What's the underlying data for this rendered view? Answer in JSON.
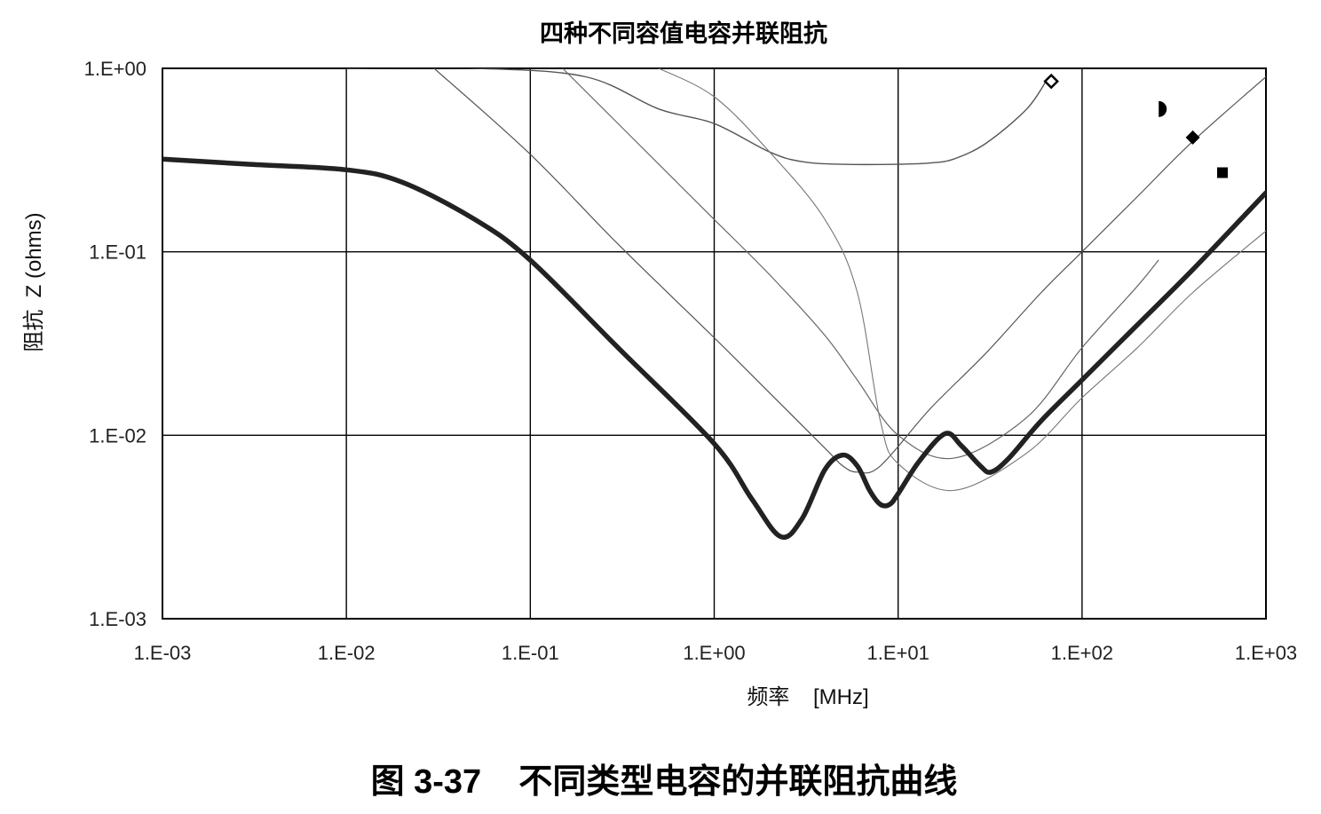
{
  "figure": {
    "caption": "图 3-37    不同类型电容的并联阻抗曲线"
  },
  "chart_data": {
    "type": "line",
    "title": "四种不同容值电容并联阻抗",
    "xlabel": "频率    [MHz]",
    "ylabel": "阻抗  Z (ohms)",
    "xscale": "log",
    "yscale": "log",
    "xlim": [
      0.001,
      1000
    ],
    "ylim": [
      0.001,
      1
    ],
    "grid": true,
    "legend": "none",
    "x_ticks": [
      {
        "value": 0.001,
        "label": "1.E-03"
      },
      {
        "value": 0.01,
        "label": "1.E-02"
      },
      {
        "value": 0.1,
        "label": "1.E-01"
      },
      {
        "value": 1,
        "label": "1.E+00"
      },
      {
        "value": 10,
        "label": "1.E+01"
      },
      {
        "value": 100,
        "label": "1.E+02"
      },
      {
        "value": 1000,
        "label": "1.E+03"
      }
    ],
    "y_ticks": [
      {
        "value": 0.001,
        "label": "1.E-03"
      },
      {
        "value": 0.01,
        "label": "1.E-02"
      },
      {
        "value": 0.1,
        "label": "1.E-01"
      },
      {
        "value": 1,
        "label": "1.E+00"
      }
    ],
    "series": [
      {
        "marker": "open-diamond",
        "color": "#555555",
        "width": 1.4,
        "x": [
          0.01,
          0.05,
          0.2,
          0.5,
          1,
          2,
          3,
          5,
          10,
          15,
          20,
          30,
          50,
          65
        ],
        "y": [
          1.0,
          1.0,
          0.9,
          0.6,
          0.5,
          0.35,
          0.31,
          0.3,
          0.3,
          0.305,
          0.32,
          0.39,
          0.6,
          0.88
        ]
      },
      {
        "marker": "half-circle",
        "color": "#666666",
        "width": 1.2,
        "x": [
          0.15,
          0.5,
          1,
          2,
          4,
          6,
          10,
          20,
          50,
          100,
          200,
          260
        ],
        "y": [
          1.0,
          0.3,
          0.15,
          0.075,
          0.035,
          0.02,
          0.01,
          0.0075,
          0.0125,
          0.03,
          0.065,
          0.09
        ]
      },
      {
        "marker": "filled-diamond",
        "color": "#555555",
        "width": 1.2,
        "x": [
          0.03,
          0.1,
          0.3,
          1,
          2,
          4,
          5,
          6,
          8,
          15,
          30,
          60,
          100,
          200,
          400,
          1000
        ],
        "y": [
          1.0,
          0.34,
          0.11,
          0.034,
          0.017,
          0.0085,
          0.0068,
          0.0063,
          0.0068,
          0.014,
          0.028,
          0.06,
          0.1,
          0.2,
          0.4,
          0.9
        ]
      },
      {
        "marker": "square",
        "color": "#777777",
        "width": 1.1,
        "x": [
          0.5,
          1,
          2,
          4,
          6,
          8,
          10,
          20,
          50,
          100,
          200,
          400,
          1000
        ],
        "y": [
          1.0,
          0.7,
          0.35,
          0.15,
          0.06,
          0.012,
          0.007,
          0.005,
          0.008,
          0.016,
          0.03,
          0.06,
          0.13
        ]
      },
      {
        "marker": "none",
        "color": "#222222",
        "width": 5.5,
        "x": [
          0.001,
          0.003,
          0.01,
          0.02,
          0.05,
          0.1,
          0.3,
          1,
          1.6,
          2.3,
          3,
          4,
          5,
          6,
          7,
          8,
          9,
          10,
          13,
          18,
          22,
          28,
          32,
          40,
          60,
          100,
          200,
          400,
          1000
        ],
        "y": [
          0.32,
          0.3,
          0.28,
          0.24,
          0.15,
          0.09,
          0.03,
          0.009,
          0.0045,
          0.0028,
          0.0035,
          0.0065,
          0.0078,
          0.0068,
          0.005,
          0.0042,
          0.0042,
          0.0048,
          0.0072,
          0.0102,
          0.0088,
          0.0068,
          0.0063,
          0.0075,
          0.012,
          0.02,
          0.04,
          0.08,
          0.21
        ]
      }
    ],
    "markers": [
      {
        "shape": "open-diamond",
        "x": 68,
        "y": 0.85
      },
      {
        "shape": "half-circle",
        "x": 270,
        "y": 0.6
      },
      {
        "shape": "filled-diamond",
        "x": 400,
        "y": 0.42
      },
      {
        "shape": "square",
        "x": 580,
        "y": 0.27
      }
    ]
  }
}
